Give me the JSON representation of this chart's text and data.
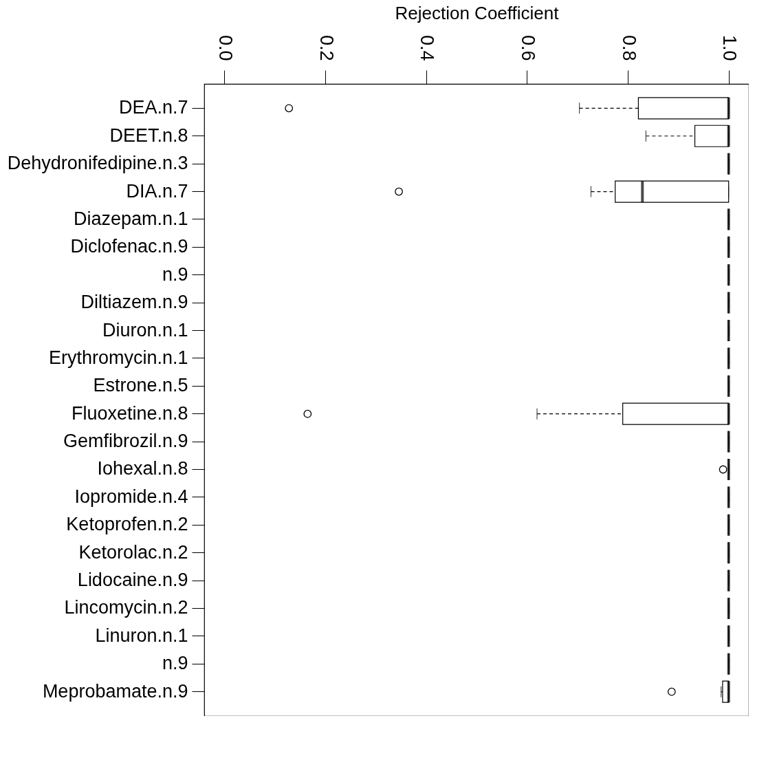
{
  "chart_data": {
    "type": "box",
    "orientation": "horizontal",
    "xlabel": "Rejection Coefficient",
    "categories": [
      "DEA.n.7",
      "DEET.n.8",
      "Dehydronifedipine.n.3",
      "DIA.n.7",
      "Diazepam.n.1",
      "Diclofenac.n.9",
      "n.9",
      "Diltiazem.n.9",
      "Diuron.n.1",
      "Erythromycin.n.1",
      "Estrone.n.5",
      "Fluoxetine.n.8",
      "Gemfibrozil.n.9",
      "Iohexal.n.8",
      "Iopromide.n.4",
      "Ketoprofen.n.2",
      "Ketorolac.n.2",
      "Lidocaine.n.9",
      "Lincomycin.n.2",
      "Linuron.n.1",
      "n.9",
      "Meprobamate.n.9"
    ],
    "boxes": [
      {
        "low": 0.704,
        "q1": 0.821,
        "median": 1,
        "q3": 1,
        "high": 1,
        "outliers": [
          0.128
        ]
      },
      {
        "low": 0.836,
        "q1": 0.933,
        "median": 1,
        "q3": 1,
        "high": 1
      },
      {
        "low": 1,
        "q1": 1,
        "median": 1,
        "q3": 1,
        "high": 1
      },
      {
        "low": 0.727,
        "q1": 0.775,
        "median": 0.829,
        "q3": 1,
        "high": 1,
        "outliers": [
          0.346
        ]
      },
      {
        "low": 1,
        "q1": 1,
        "median": 1,
        "q3": 1,
        "high": 1
      },
      {
        "low": 1,
        "q1": 1,
        "median": 1,
        "q3": 1,
        "high": 1
      },
      {
        "low": 1,
        "q1": 1,
        "median": 1,
        "q3": 1,
        "high": 1
      },
      {
        "low": 1,
        "q1": 1,
        "median": 1,
        "q3": 1,
        "high": 1
      },
      {
        "low": 1,
        "q1": 1,
        "median": 1,
        "q3": 1,
        "high": 1
      },
      {
        "low": 1,
        "q1": 1,
        "median": 1,
        "q3": 1,
        "high": 1
      },
      {
        "low": 1,
        "q1": 1,
        "median": 1,
        "q3": 1,
        "high": 1
      },
      {
        "low": 0.62,
        "q1": 0.79,
        "median": 1,
        "q3": 1,
        "high": 1,
        "outliers": [
          0.165
        ]
      },
      {
        "low": 1,
        "q1": 1,
        "median": 1,
        "q3": 1,
        "high": 1
      },
      {
        "low": 1,
        "q1": 1,
        "median": 1,
        "q3": 1,
        "high": 1,
        "outliers": [
          0.989
        ]
      },
      {
        "low": 1,
        "q1": 1,
        "median": 1,
        "q3": 1,
        "high": 1
      },
      {
        "low": 1,
        "q1": 1,
        "median": 1,
        "q3": 1,
        "high": 1
      },
      {
        "low": 1,
        "q1": 1,
        "median": 1,
        "q3": 1,
        "high": 1
      },
      {
        "low": 1,
        "q1": 1,
        "median": 1,
        "q3": 1,
        "high": 1
      },
      {
        "low": 1,
        "q1": 1,
        "median": 1,
        "q3": 1,
        "high": 1
      },
      {
        "low": 1,
        "q1": 1,
        "median": 1,
        "q3": 1,
        "high": 1
      },
      {
        "low": 1,
        "q1": 1,
        "median": 1,
        "q3": 1,
        "high": 1
      },
      {
        "low": 0.985,
        "q1": 0.988,
        "median": 1,
        "q3": 1,
        "high": 1,
        "outliers": [
          0.887
        ]
      }
    ],
    "xlim": [
      -0.04,
      1.04
    ],
    "xticks": [
      {
        "value": 0,
        "label": "0.0"
      },
      {
        "value": 0.2,
        "label": "0.2"
      },
      {
        "value": 0.4,
        "label": "0.4"
      },
      {
        "value": 0.6,
        "label": "0.6"
      },
      {
        "value": 0.8,
        "label": "0.8"
      },
      {
        "value": 1,
        "label": "1.0"
      }
    ],
    "grid": false
  }
}
